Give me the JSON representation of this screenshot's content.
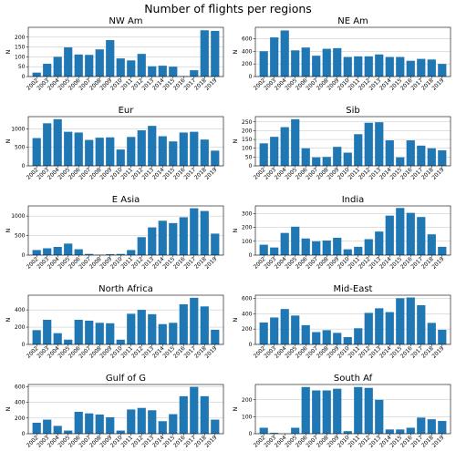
{
  "figure": {
    "title": "Number of flights per regions",
    "bar_color": "#1f77b4"
  },
  "chart_data": [
    {
      "type": "bar",
      "title": "NW Am",
      "xlabel": "",
      "ylabel": "N",
      "categories": [
        "2002",
        "2003",
        "2004",
        "2005",
        "2006",
        "2007",
        "2008",
        "2009",
        "2010",
        "2011",
        "2012",
        "2013",
        "2014",
        "2015",
        "2016",
        "2017",
        "2018",
        "2019"
      ],
      "values": [
        20,
        65,
        100,
        148,
        112,
        110,
        138,
        185,
        92,
        82,
        115,
        52,
        55,
        50,
        2,
        32,
        235,
        232
      ],
      "ylim": [
        0,
        250
      ],
      "yticks": [
        0,
        50,
        100,
        150,
        200
      ],
      "grid": true
    },
    {
      "type": "bar",
      "title": "NE Am",
      "xlabel": "",
      "ylabel": "N",
      "categories": [
        "2002",
        "2003",
        "2004",
        "2005",
        "2006",
        "2007",
        "2008",
        "2009",
        "2010",
        "2011",
        "2012",
        "2013",
        "2014",
        "2015",
        "2016",
        "2017",
        "2018",
        "2019"
      ],
      "values": [
        400,
        620,
        730,
        415,
        460,
        330,
        440,
        450,
        310,
        320,
        320,
        350,
        310,
        310,
        250,
        280,
        270,
        200
      ],
      "ylim": [
        0,
        780
      ],
      "yticks": [
        0,
        200,
        400,
        600
      ],
      "grid": true
    },
    {
      "type": "bar",
      "title": "Eur",
      "xlabel": "",
      "ylabel": "N",
      "categories": [
        "2002",
        "2003",
        "2004",
        "2005",
        "2006",
        "2007",
        "2008",
        "2009",
        "2010",
        "2011",
        "2012",
        "2013",
        "2014",
        "2015",
        "2016",
        "2017",
        "2018",
        "2019"
      ],
      "values": [
        750,
        1150,
        1260,
        920,
        900,
        700,
        760,
        770,
        440,
        780,
        960,
        1080,
        800,
        660,
        900,
        920,
        710,
        410
      ],
      "ylim": [
        0,
        1330
      ],
      "yticks": [
        0,
        500,
        1000
      ],
      "grid": true
    },
    {
      "type": "bar",
      "title": "Sib",
      "xlabel": "",
      "ylabel": "N",
      "categories": [
        "2002",
        "2003",
        "2004",
        "2005",
        "2006",
        "2007",
        "2008",
        "2009",
        "2010",
        "2011",
        "2012",
        "2013",
        "2014",
        "2015",
        "2016",
        "2017",
        "2018",
        "2019"
      ],
      "values": [
        128,
        165,
        220,
        265,
        100,
        48,
        50,
        108,
        75,
        180,
        245,
        248,
        145,
        48,
        145,
        115,
        100,
        88
      ],
      "ylim": [
        0,
        280
      ],
      "yticks": [
        0,
        50,
        100,
        150,
        200,
        250
      ],
      "grid": true
    },
    {
      "type": "bar",
      "title": "E Asia",
      "xlabel": "",
      "ylabel": "N",
      "categories": [
        "2002",
        "2003",
        "2004",
        "2005",
        "2006",
        "2007",
        "2008",
        "2009",
        "2010",
        "2011",
        "2012",
        "2013",
        "2014",
        "2015",
        "2016",
        "2017",
        "2018",
        "2019"
      ],
      "values": [
        130,
        175,
        210,
        295,
        150,
        30,
        10,
        25,
        30,
        130,
        460,
        710,
        880,
        820,
        970,
        1200,
        1130,
        550
      ],
      "ylim": [
        0,
        1260
      ],
      "yticks": [
        0,
        500,
        1000
      ],
      "grid": true
    },
    {
      "type": "bar",
      "title": "India",
      "xlabel": "",
      "ylabel": "N",
      "categories": [
        "2002",
        "2003",
        "2004",
        "2005",
        "2006",
        "2007",
        "2008",
        "2009",
        "2010",
        "2011",
        "2012",
        "2013",
        "2014",
        "2015",
        "2016",
        "2017",
        "2018",
        "2019"
      ],
      "values": [
        75,
        55,
        160,
        205,
        120,
        100,
        105,
        125,
        42,
        60,
        115,
        170,
        285,
        340,
        305,
        275,
        150,
        60
      ],
      "ylim": [
        0,
        355
      ],
      "yticks": [
        0,
        100,
        200,
        300
      ],
      "grid": true
    },
    {
      "type": "bar",
      "title": "North Africa",
      "xlabel": "",
      "ylabel": "N",
      "categories": [
        "2002",
        "2003",
        "2004",
        "2005",
        "2006",
        "2007",
        "2008",
        "2009",
        "2010",
        "2011",
        "2012",
        "2013",
        "2014",
        "2015",
        "2016",
        "2017",
        "2018",
        "2019"
      ],
      "values": [
        165,
        285,
        130,
        55,
        285,
        275,
        250,
        245,
        55,
        355,
        400,
        350,
        235,
        250,
        465,
        540,
        440,
        170
      ],
      "ylim": [
        0,
        570
      ],
      "yticks": [
        0,
        200,
        400
      ],
      "grid": true
    },
    {
      "type": "bar",
      "title": "Mid-East",
      "xlabel": "",
      "ylabel": "N",
      "categories": [
        "2002",
        "2003",
        "2004",
        "2005",
        "2006",
        "2007",
        "2008",
        "2009",
        "2010",
        "2011",
        "2012",
        "2013",
        "2014",
        "2015",
        "2016",
        "2017",
        "2018",
        "2019"
      ],
      "values": [
        285,
        350,
        460,
        375,
        250,
        160,
        185,
        150,
        95,
        210,
        410,
        470,
        420,
        600,
        610,
        510,
        280,
        190
      ],
      "ylim": [
        0,
        640
      ],
      "yticks": [
        0,
        200,
        400,
        600
      ],
      "grid": true
    },
    {
      "type": "bar",
      "title": "Gulf of G",
      "xlabel": "",
      "ylabel": "N",
      "categories": [
        "2002",
        "2003",
        "2004",
        "2005",
        "2006",
        "2007",
        "2008",
        "2009",
        "2010",
        "2011",
        "2012",
        "2013",
        "2014",
        "2015",
        "2016",
        "2017",
        "2018",
        "2019"
      ],
      "values": [
        140,
        180,
        100,
        40,
        280,
        260,
        245,
        210,
        40,
        310,
        330,
        300,
        160,
        250,
        480,
        600,
        480,
        180
      ],
      "ylim": [
        0,
        630
      ],
      "yticks": [
        0,
        200,
        400,
        600
      ],
      "grid": true
    },
    {
      "type": "bar",
      "title": "South Af",
      "xlabel": "",
      "ylabel": "N",
      "categories": [
        "2002",
        "2003",
        "2004",
        "2005",
        "2006",
        "2007",
        "2008",
        "2009",
        "2010",
        "2011",
        "2012",
        "2013",
        "2014",
        "2015",
        "2016",
        "2017",
        "2018",
        "2019"
      ],
      "values": [
        35,
        5,
        0,
        35,
        275,
        255,
        255,
        265,
        15,
        275,
        270,
        200,
        25,
        25,
        35,
        95,
        85,
        75
      ],
      "ylim": [
        0,
        290
      ],
      "yticks": [
        0,
        100,
        200
      ],
      "grid": true
    }
  ]
}
